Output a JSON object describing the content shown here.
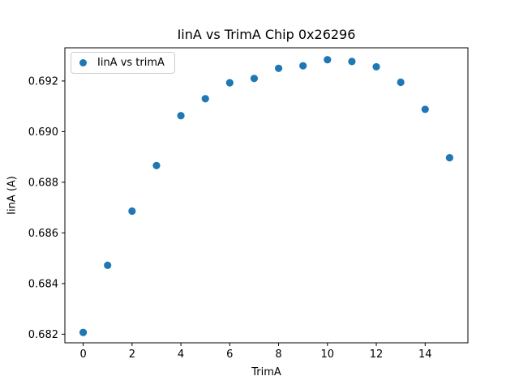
{
  "chart_data": {
    "type": "scatter",
    "title": "IinA vs TrimA Chip 0x26296",
    "xlabel": "TrimA",
    "ylabel": "IinA (A)",
    "legend_position": "upper left",
    "grid": false,
    "background": "#ffffff",
    "axis_color": "#000000",
    "series": [
      {
        "name": "IinA vs trimA",
        "color": "#1f77b4",
        "x": [
          0,
          1,
          2,
          3,
          4,
          5,
          6,
          7,
          8,
          9,
          10,
          11,
          12,
          13,
          14,
          15
        ],
        "y": [
          0.68207,
          0.68472,
          0.68686,
          0.68866,
          0.69063,
          0.6913,
          0.69193,
          0.6921,
          0.6925,
          0.6926,
          0.69284,
          0.69277,
          0.69256,
          0.69195,
          0.69088,
          0.68897
        ]
      }
    ],
    "xlim": [
      -0.75,
      15.75
    ],
    "ylim": [
      0.68166,
      0.69331
    ],
    "xticks": [
      0,
      2,
      4,
      6,
      8,
      10,
      12,
      14
    ],
    "xtick_labels": [
      "0",
      "2",
      "4",
      "6",
      "8",
      "10",
      "12",
      "14"
    ],
    "yticks": [
      0.682,
      0.684,
      0.686,
      0.688,
      0.69,
      0.692
    ],
    "ytick_labels": [
      "0.682",
      "0.684",
      "0.686",
      "0.688",
      "0.690",
      "0.692"
    ]
  }
}
